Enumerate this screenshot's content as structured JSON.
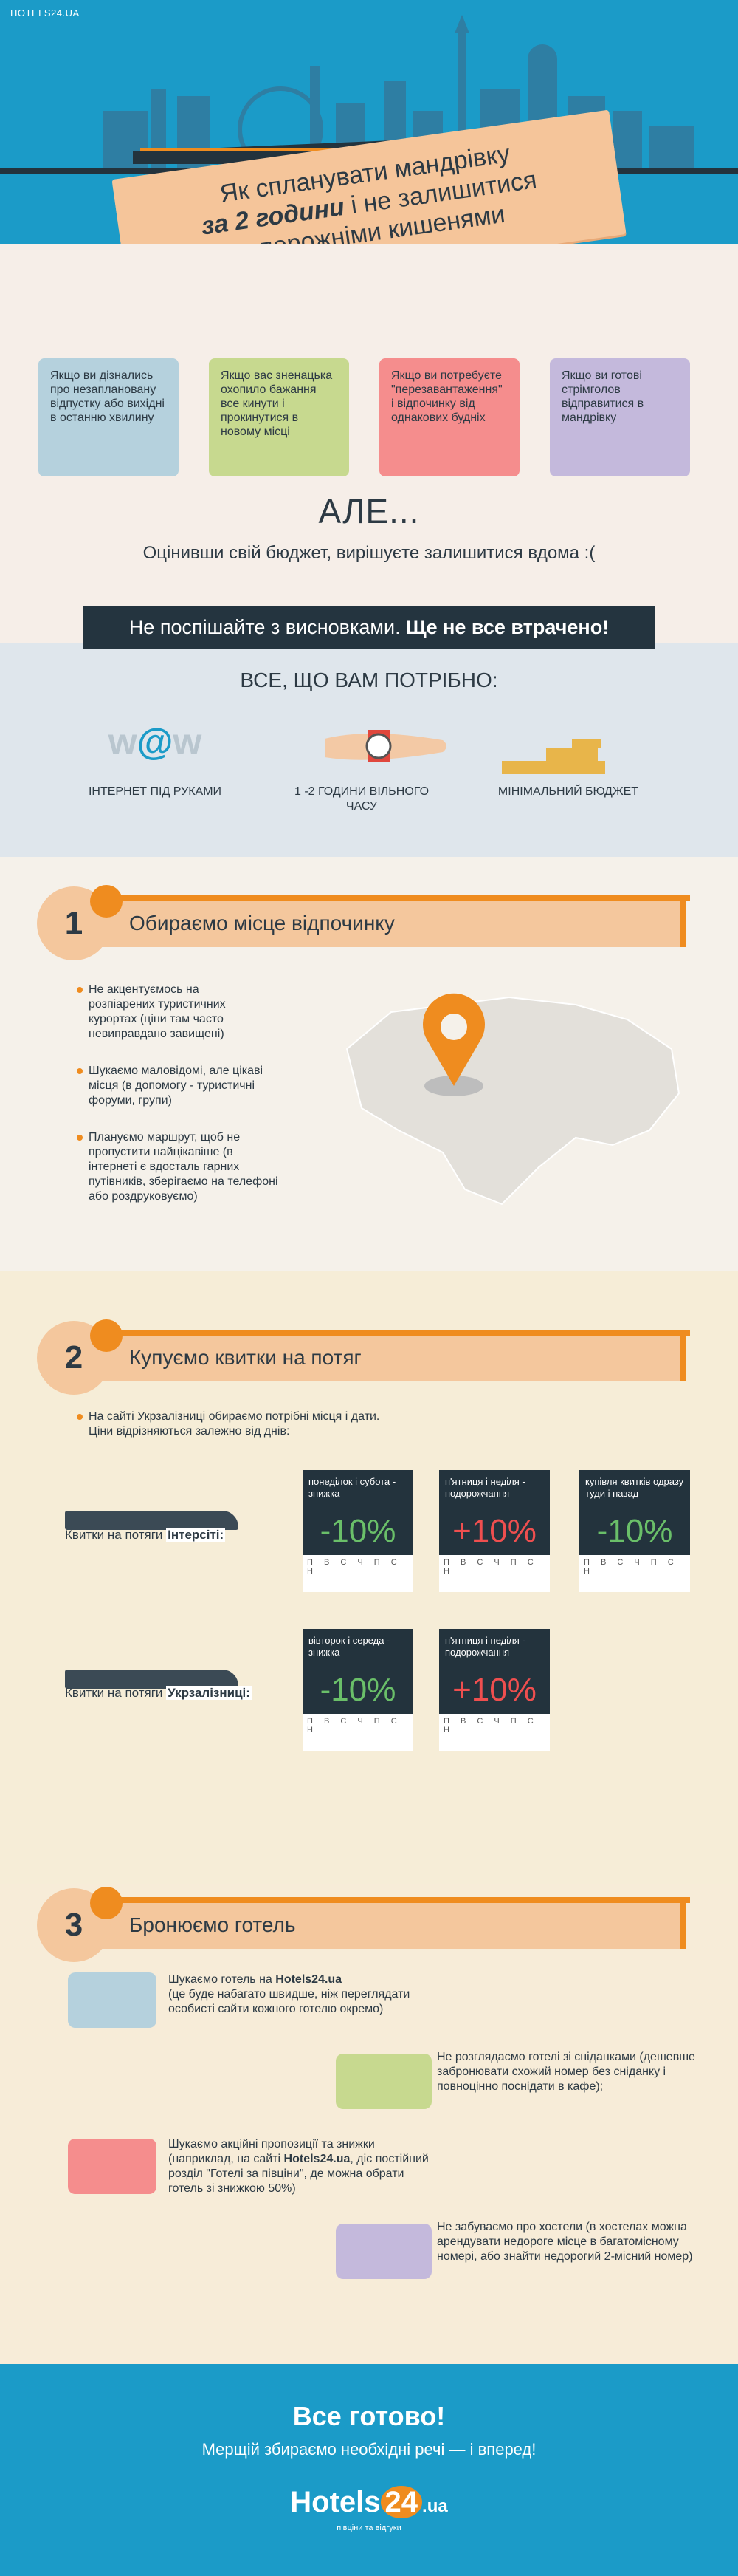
{
  "header": {
    "site": "HOTELS24.UA",
    "title_line1": "Як спланувати мандрівку",
    "title_bold": "за 2 години",
    "title_line2_rest": " і не залишитися",
    "title_line3": "з порожніми кишенями"
  },
  "intro": {
    "cards": [
      {
        "text": "Якщо ви дізнались про незаплановану відпустку або вихідні в останню хвилину",
        "color": "#b5d1dd"
      },
      {
        "text": "Якщо вас зненацька охопило бажання все кинути і прокинутися в новому місці",
        "color": "#c7d98f"
      },
      {
        "text": "Якщо ви потребуєте \"перезавантаження\" і відпочинку від однакових будніх",
        "color": "#f58d8d"
      },
      {
        "text": "Якщо ви готові стрімголов відправитися в мандрівку",
        "color": "#c4b9dc"
      }
    ],
    "ale": "АЛЕ...",
    "ale_sub": "Оцінивши свій бюджет, вирішуєте залишитися вдома :(",
    "banner_start": "Не поспішайте з висновками. ",
    "banner_bold": "Ще не все втрачено!"
  },
  "needs": {
    "title": "ВСЕ, ЩО ВАМ ПОТРІБНО:",
    "items": [
      {
        "label": "ІНТЕРНЕТ ПІД РУКАМИ",
        "icon": "www-icon"
      },
      {
        "label": "1 -2 ГОДИНИ ВІЛЬНОГО ЧАСУ",
        "icon": "watch-icon"
      },
      {
        "label": "МІНІМАЛЬНИЙ БЮДЖЕТ",
        "icon": "coins-icon"
      }
    ]
  },
  "s1": {
    "num": "1",
    "title": "Обираємо місце відпочинку",
    "bullets": [
      "Не акцентуємось на розпіарених туристичних курортах (ціни там часто невиправдано завищені)",
      "Шукаємо маловідомі, але цікаві місця (в допомогу - туристичні форуми, групи)",
      "Плануємо маршрут, щоб не пропустити найцікавіше (в інтернеті є вдосталь гарних путівників, зберігаємо на телефоні або роздруковуємо)"
    ]
  },
  "s2": {
    "num": "2",
    "title": "Купуємо квитки на потяг",
    "intro_line1": "На сайті Укрзалізниці обираємо потрібні місця і дати.",
    "intro_line2": "Ціни відрізняються залежно від днів:",
    "train1_label": "Квитки на потяги ",
    "train1_bold": "Інтерсіті:",
    "train2_label": "Квитки на потяги ",
    "train2_bold": "Укрзалізниці:",
    "days": "П В С Ч П С Н",
    "tickets1": [
      {
        "label": "понеділок і субота - знижка",
        "pct": "-10%",
        "color": "#6abf69"
      },
      {
        "label": "п'ятниця і неділя - подорожчання",
        "pct": "+10%",
        "color": "#ef4f4f"
      },
      {
        "label": "купівля квитків одразу туди і назад",
        "pct": "-10%",
        "color": "#6abf69"
      }
    ],
    "tickets2": [
      {
        "label": "вівторок і середа - знижка",
        "pct": "-10%",
        "color": "#6abf69"
      },
      {
        "label": "п'ятниця і неділя - подорожчання",
        "pct": "+10%",
        "color": "#ef4f4f"
      }
    ]
  },
  "s3": {
    "num": "3",
    "title": "Бронюємо готель",
    "item1_a": "Шукаємо готель на ",
    "item1_b": "Hotels24.ua",
    "item1_c": "(це буде набагато швидше, ніж переглядати особисті сайти кожного готелю окремо)",
    "item2": "Не розглядаємо готелі зі сніданками (дешевше забронювати схожий номер без сніданку і повноцінно поснідати в кафе);",
    "item3_a": "Шукаємо акційні пропозиції та знижки (наприклад, на сайті ",
    "item3_b": "Hotels24.ua",
    "item3_c": ", діє постійний розділ \"Готелі за півціни\", де можна обрати готель зі знижкою 50%)",
    "item4": "Не забуваємо про хостели (в хостелах можна арендувати недороге місце в багатомісному номері, або знайти недорогий 2-місний номер)"
  },
  "footer": {
    "title": "Все готово!",
    "subtitle": "Мерщій збираємо необхідні речі — і вперед!",
    "logo_a": "Hotels",
    "logo_b": "24",
    "logo_c": ".ua",
    "logo_sub": "півціни та відгуки"
  }
}
